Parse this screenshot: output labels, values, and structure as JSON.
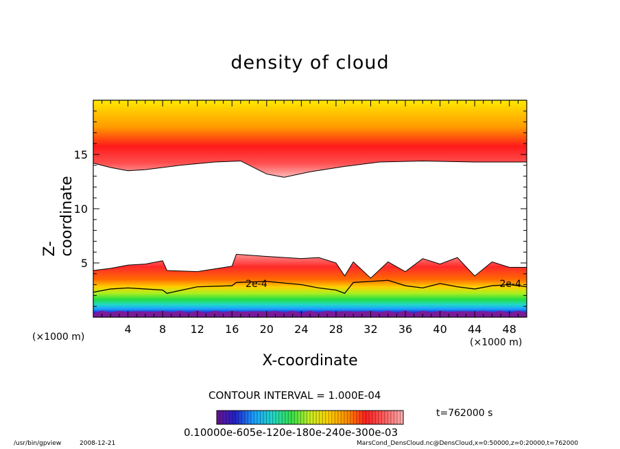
{
  "chart_data": {
    "type": "heatmap",
    "title": "density of cloud",
    "xlabel": "X-coordinate",
    "ylabel": "Z-coordinate",
    "x_unit": "(×1000 m)",
    "xlim": [
      0,
      50
    ],
    "ylim": [
      0,
      20
    ],
    "x_ticks": [
      4,
      8,
      12,
      16,
      20,
      24,
      28,
      32,
      36,
      40,
      44,
      48
    ],
    "y_ticks": [
      5,
      10,
      15
    ],
    "contour_labels": [
      "2e-4",
      "2e-4"
    ],
    "contour_interval": "CONTOUR INTERVAL = 1.000E-04",
    "time": "t=762000 s",
    "colorbar_labels": "0.10000e-605e-120e-180e-240e-300e-03",
    "colormap": [
      "#6a1490",
      "#2222cc",
      "#1aa0ff",
      "#22d8c8",
      "#33e04a",
      "#c8ee22",
      "#ffd000",
      "#ff8c00",
      "#ff2020",
      "#ff6060",
      "#ffb0b0"
    ],
    "upper_layer": {
      "base_z": [
        14.2,
        13.8,
        13.5,
        13.6,
        14.0,
        14.3,
        14.4,
        13.2,
        12.9,
        13.4,
        13.9,
        14.3,
        14.4,
        14.3,
        14.3
      ],
      "x": [
        0,
        2,
        4,
        6,
        10,
        14,
        17,
        20,
        22,
        25,
        29,
        33,
        38,
        44,
        50
      ]
    },
    "lower_layer": {
      "x": [
        0,
        2,
        4,
        6,
        8,
        8.5,
        12,
        16,
        16.5,
        20,
        24,
        26,
        28,
        29,
        30,
        32,
        34,
        36,
        38,
        40,
        42,
        44,
        46,
        48,
        50
      ],
      "top_z": [
        4.3,
        4.5,
        4.8,
        4.9,
        5.2,
        4.3,
        4.2,
        4.7,
        5.8,
        5.6,
        5.4,
        5.5,
        5.0,
        3.8,
        5.1,
        3.6,
        5.1,
        4.2,
        5.4,
        4.9,
        5.5,
        3.8,
        5.1,
        4.6,
        4.6
      ],
      "contour_2e4_z": [
        2.3,
        2.6,
        2.7,
        2.6,
        2.5,
        2.2,
        2.8,
        2.9,
        3.2,
        3.3,
        3.0,
        2.7,
        2.5,
        2.2,
        3.2,
        3.3,
        3.4,
        2.9,
        2.7,
        3.1,
        2.8,
        2.6,
        2.9,
        3.0,
        2.8
      ]
    }
  },
  "footer": {
    "left": "/usr/bin/gpview",
    "date": "2008-12-21",
    "right": "MarsCond_DensCloud.nc@DensCloud,x=0:50000,z=0:20000,t=762000"
  }
}
